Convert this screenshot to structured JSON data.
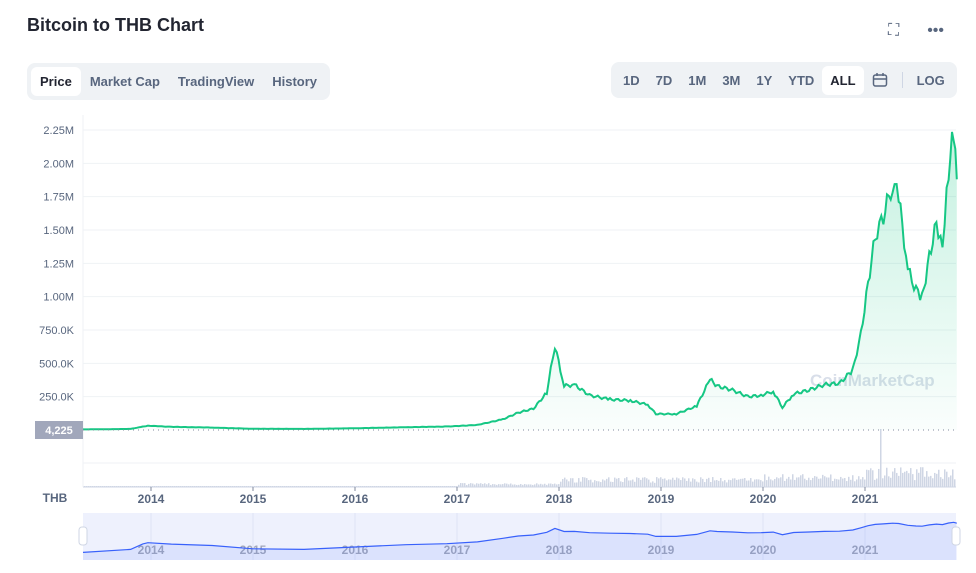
{
  "title": "Bitcoin to THB Chart",
  "header_icons": [
    "fullscreen-icon",
    "more-icon"
  ],
  "tabs": [
    {
      "label": "Price",
      "active": true
    },
    {
      "label": "Market Cap"
    },
    {
      "label": "TradingView"
    },
    {
      "label": "History"
    }
  ],
  "ranges": [
    {
      "label": "1D"
    },
    {
      "label": "7D"
    },
    {
      "label": "1M"
    },
    {
      "label": "3M"
    },
    {
      "label": "1Y"
    },
    {
      "label": "YTD"
    },
    {
      "label": "ALL",
      "active": true
    }
  ],
  "log_label": "LOG",
  "watermark": "CoinMarketCap",
  "colors": {
    "line": "#16c784",
    "navigator": "#3861fb",
    "grid": "#eff2f5"
  },
  "chart_data": {
    "type": "line",
    "ylabel": "THB",
    "ylim": [
      0,
      2250000
    ],
    "yticks": [
      "2.25M",
      "2.00M",
      "1.75M",
      "1.50M",
      "1.25M",
      "1.00M",
      "750.0K",
      "500.0K",
      "250.0K"
    ],
    "ytick_values": [
      2250000,
      2000000,
      1750000,
      1500000,
      1250000,
      1000000,
      750000,
      500000,
      250000
    ],
    "xticks": [
      "2014",
      "2015",
      "2016",
      "2017",
      "2018",
      "2019",
      "2020",
      "2021"
    ],
    "current_label": "4,225",
    "current_value": 4225,
    "x": [
      2013.33,
      2013.8,
      2013.92,
      2013.97,
      2014.2,
      2014.6,
      2015.0,
      2015.5,
      2016.0,
      2016.5,
      2016.9,
      2017.2,
      2017.45,
      2017.6,
      2017.75,
      2017.88,
      2017.96,
      2018.05,
      2018.15,
      2018.3,
      2018.5,
      2018.7,
      2018.87,
      2018.95,
      2019.15,
      2019.35,
      2019.48,
      2019.55,
      2019.7,
      2019.85,
      2019.98,
      2020.1,
      2020.19,
      2020.3,
      2020.45,
      2020.6,
      2020.75,
      2020.88,
      2020.96,
      2021.03,
      2021.1,
      2021.18,
      2021.27,
      2021.33,
      2021.42,
      2021.5,
      2021.56,
      2021.63,
      2021.7,
      2021.76,
      2021.82,
      2021.87,
      2021.9
    ],
    "values": [
      4225,
      8000,
      25000,
      32000,
      24000,
      18000,
      9000,
      8000,
      13000,
      21000,
      26000,
      38000,
      80000,
      130000,
      160000,
      280000,
      630000,
      330000,
      340000,
      260000,
      230000,
      220000,
      190000,
      120000,
      120000,
      180000,
      380000,
      330000,
      300000,
      250000,
      260000,
      290000,
      170000,
      270000,
      300000,
      340000,
      350000,
      450000,
      720000,
      1100000,
      1450000,
      1600000,
      1850000,
      1750000,
      1200000,
      1050000,
      990000,
      1300000,
      1550000,
      1400000,
      1950000,
      2250000,
      1880000
    ]
  }
}
